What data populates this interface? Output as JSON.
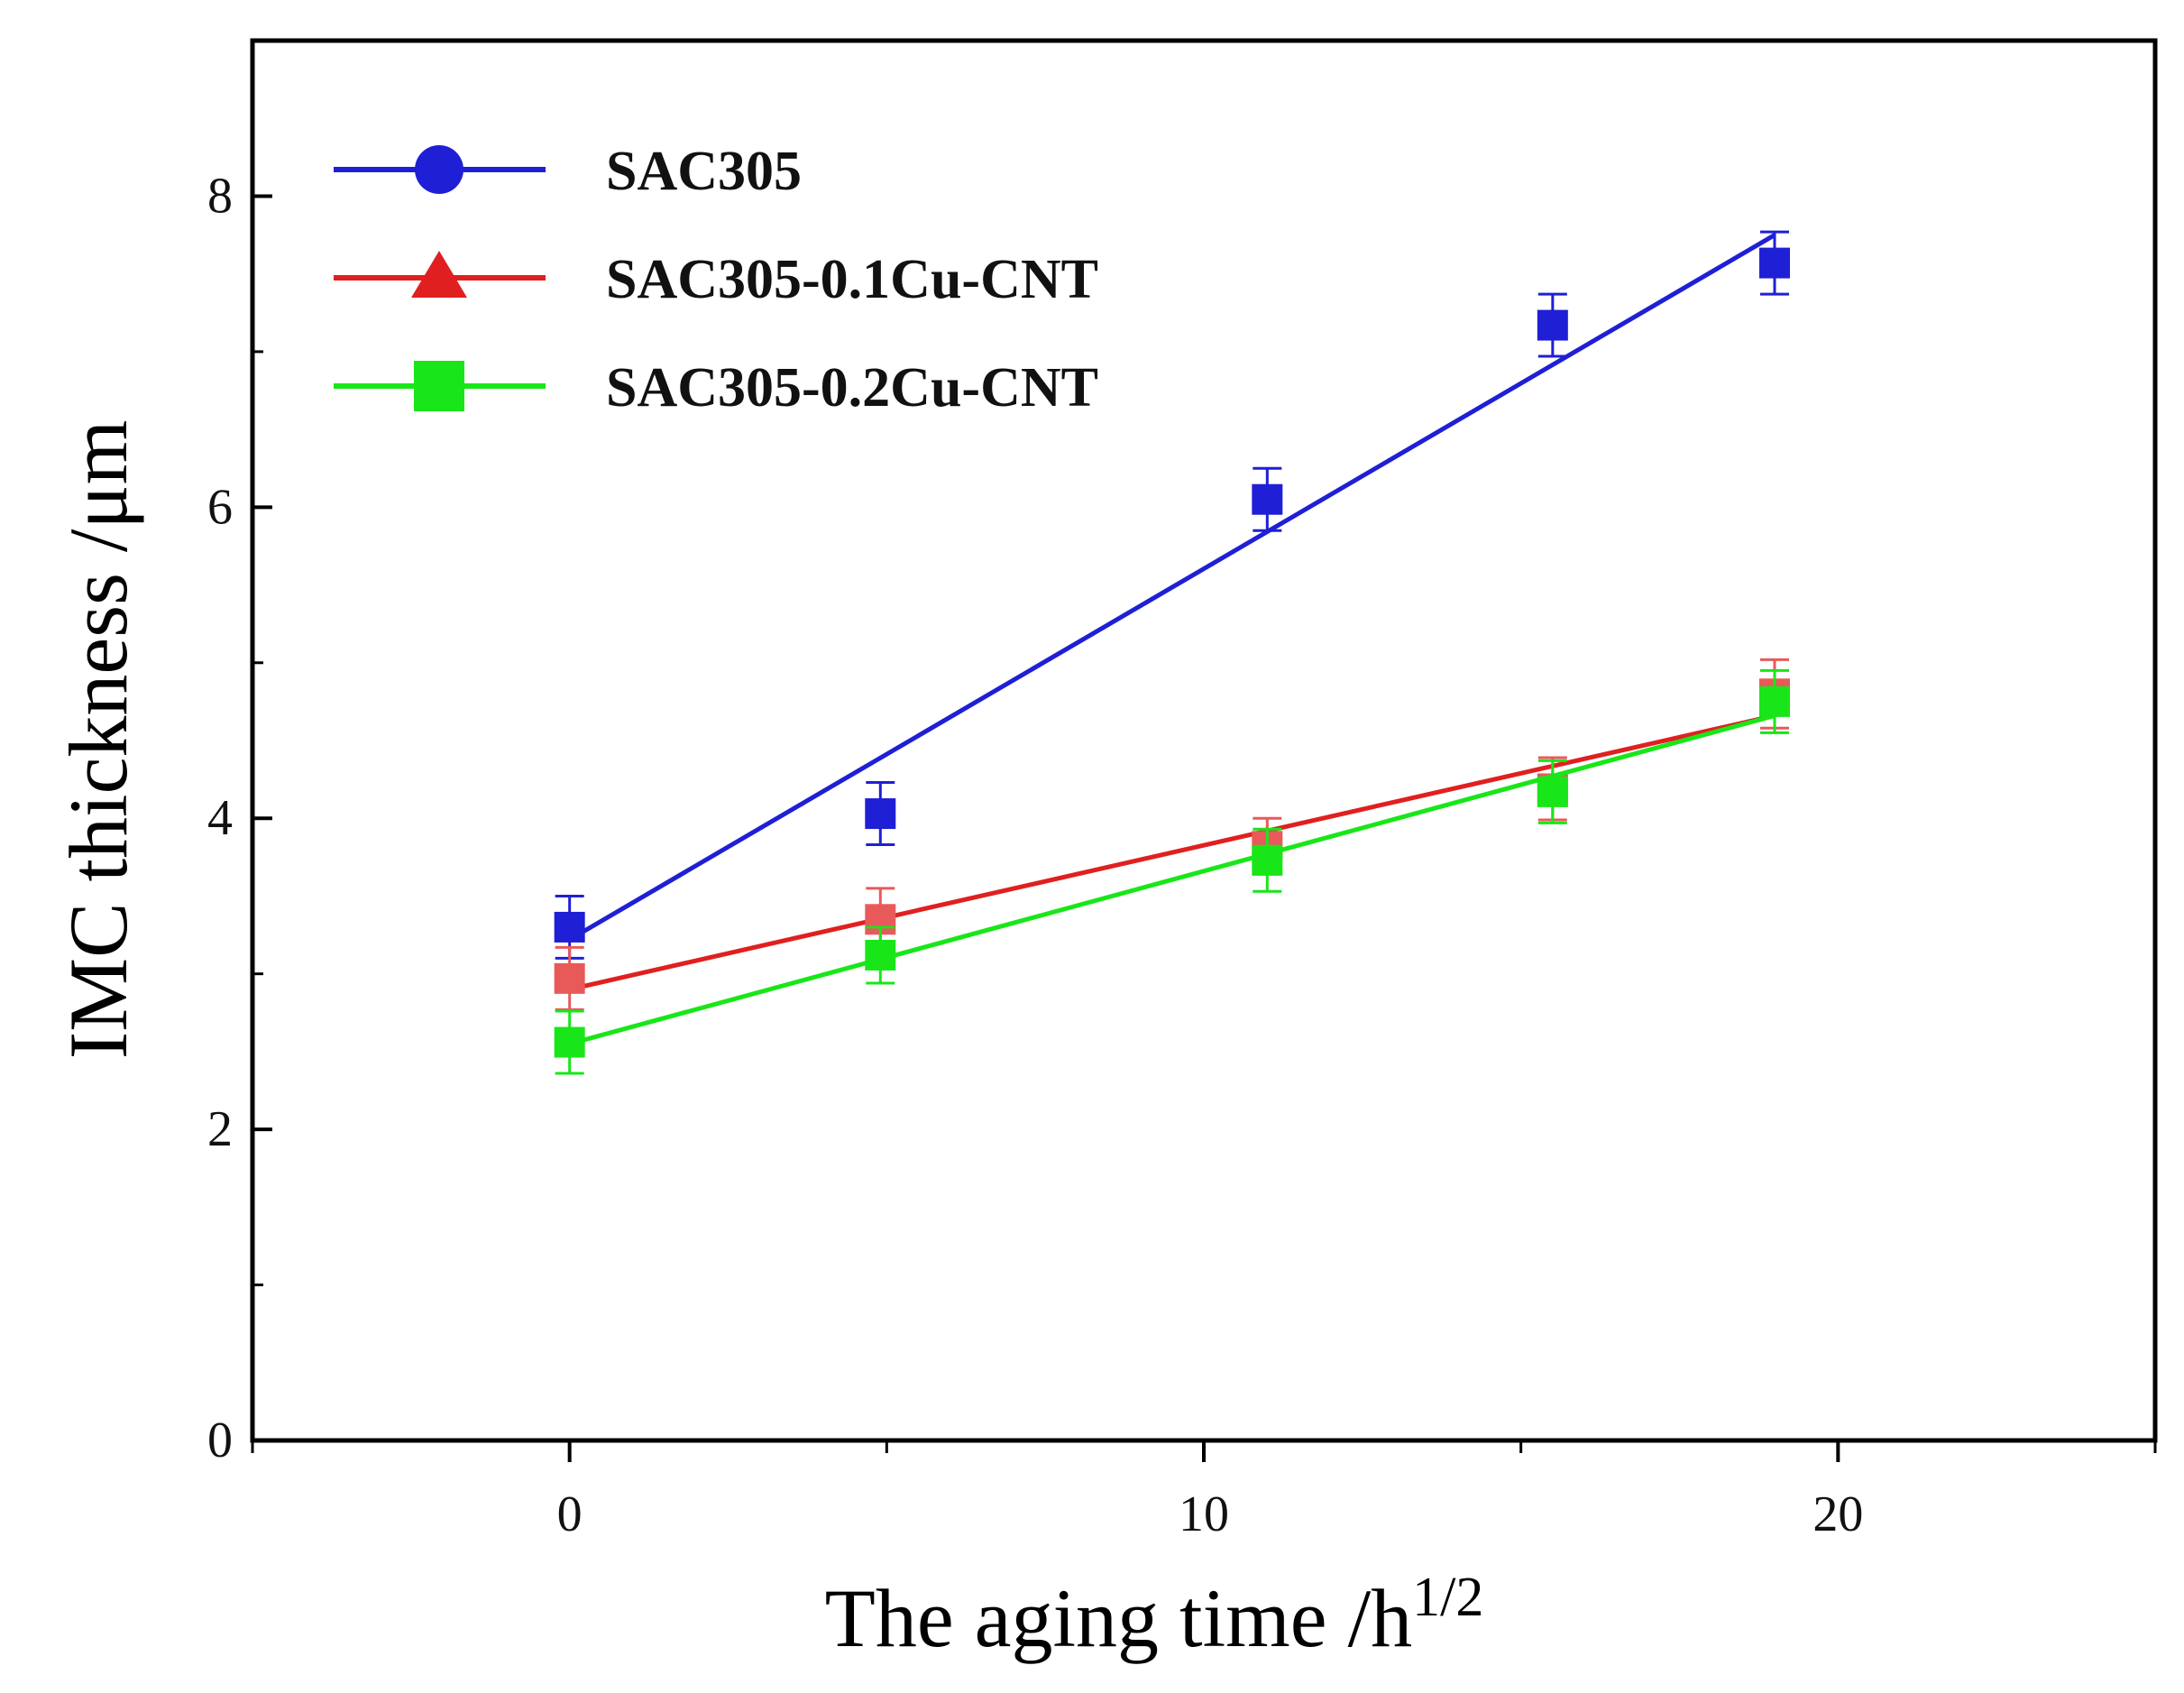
{
  "chart_data": {
    "type": "scatter",
    "title": "",
    "xlabel": "The aging time /h",
    "xlabel_superscript": "1/2",
    "ylabel": "IMC thickness /μm",
    "xlim": [
      -5,
      25
    ],
    "ylim": [
      0,
      9
    ],
    "xticks": [
      0,
      10,
      20
    ],
    "yticks": [
      0,
      2,
      4,
      6,
      8
    ],
    "x_minor_ticks": [
      -5,
      5,
      15,
      25
    ],
    "y_minor_ticks": [
      1,
      3,
      5,
      7
    ],
    "grid": false,
    "legend_position": "top-left",
    "series": [
      {
        "name": "SAC305",
        "color": "#1f1fd6",
        "legend_marker": "circle",
        "point_marker": "square",
        "x": [
          0,
          4.9,
          11,
          15.5,
          19
        ],
        "y": [
          3.3,
          4.03,
          6.05,
          7.17,
          7.57
        ],
        "error": [
          0.2,
          0.2,
          0.2,
          0.2,
          0.2
        ],
        "fit": {
          "x": [
            0,
            19
          ],
          "y": [
            3.22,
            7.75
          ]
        }
      },
      {
        "name": "SAC305-0.1Cu-CNT",
        "color": "#e02020",
        "point_color": "#e85a5a",
        "legend_marker": "triangle",
        "point_marker": "square",
        "x": [
          0,
          4.9,
          11,
          15.5,
          19
        ],
        "y": [
          2.97,
          3.35,
          3.82,
          4.19,
          4.8
        ],
        "error": [
          0.2,
          0.2,
          0.18,
          0.2,
          0.22
        ],
        "fit": {
          "x": [
            0,
            19
          ],
          "y": [
            2.9,
            4.66
          ]
        }
      },
      {
        "name": "SAC305-0.2Cu-CNT",
        "color": "#19e619",
        "legend_marker": "square",
        "point_marker": "square",
        "x": [
          0,
          4.9,
          11,
          15.5,
          19
        ],
        "y": [
          2.56,
          3.12,
          3.73,
          4.17,
          4.75
        ],
        "error": [
          0.2,
          0.18,
          0.2,
          0.2,
          0.2
        ],
        "fit": {
          "x": [
            0,
            19
          ],
          "y": [
            2.55,
            4.66
          ]
        }
      }
    ]
  }
}
